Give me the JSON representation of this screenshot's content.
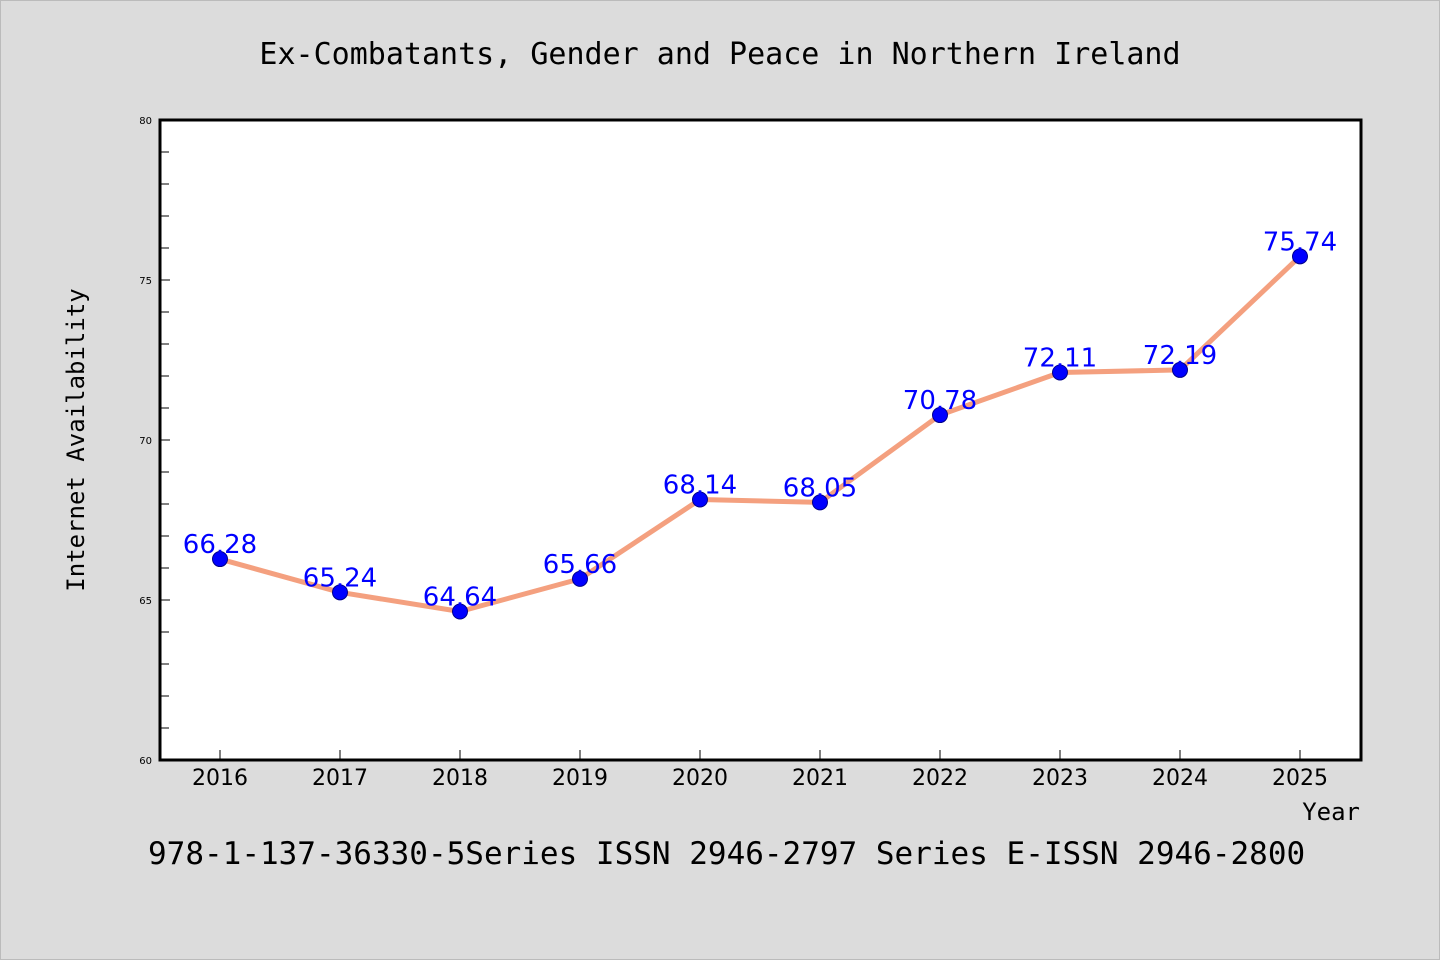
{
  "chart_data": {
    "type": "line",
    "title": "Ex-Combatants, Gender and Peace in Northern Ireland",
    "xlabel": "Year",
    "ylabel": "Internet Availability",
    "categories": [
      "2016",
      "2017",
      "2018",
      "2019",
      "2020",
      "2021",
      "2022",
      "2023",
      "2024",
      "2025"
    ],
    "series": [
      {
        "values": [
          66.28,
          65.24,
          64.64,
          65.66,
          68.14,
          68.05,
          70.78,
          72.11,
          72.19,
          75.74
        ]
      }
    ],
    "data_labels": [
      "66.28",
      "65.24",
      "64.64",
      "65.66",
      "68.14",
      "68.05",
      "70.78",
      "72.11",
      "72.19",
      "75.74"
    ],
    "ylim": [
      60,
      80
    ],
    "yticks": [
      "60",
      "65",
      "70",
      "75",
      "80"
    ],
    "grid": false,
    "colors": {
      "line": "#f4a07f",
      "marker": "#0000ff",
      "label": "#0000ff",
      "background": "#dcdcdc",
      "plot_background": "#ffffff"
    }
  },
  "footer": "978-1-137-36330-5Series ISSN 2946-2797 Series E-ISSN 2946-2800"
}
